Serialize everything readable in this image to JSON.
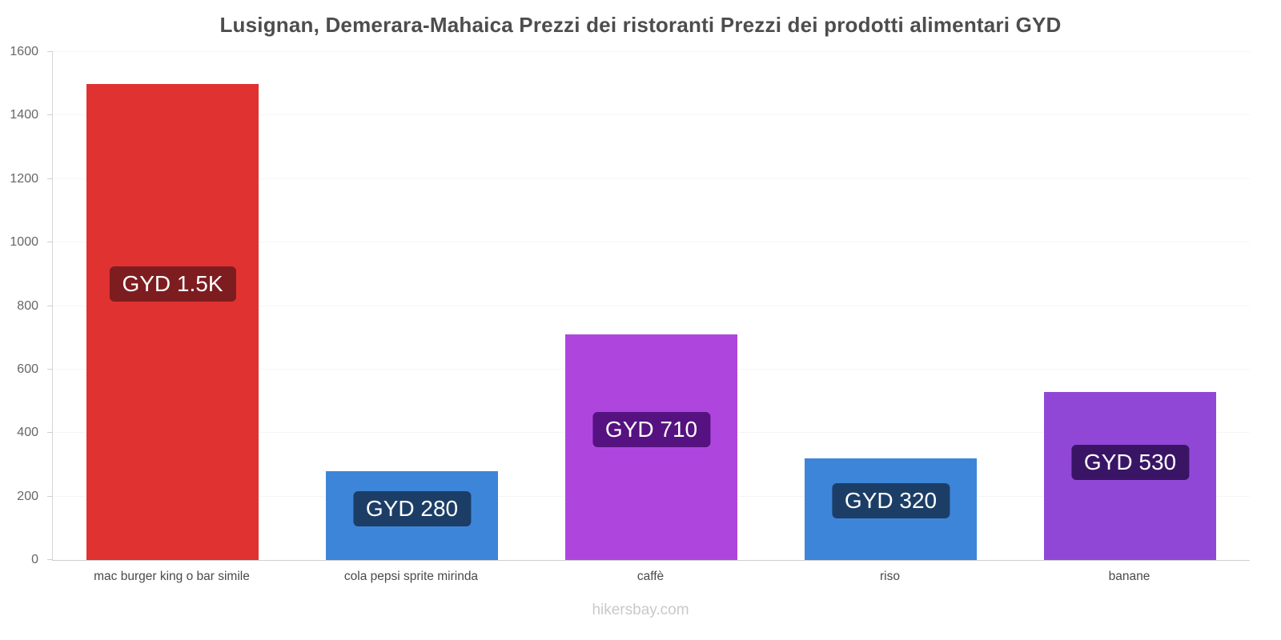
{
  "title": "Lusignan, Demerara-Mahaica Prezzi dei ristoranti Prezzi dei prodotti alimentari GYD",
  "footer": "hikersbay.com",
  "chart_data": {
    "type": "bar",
    "title": "Lusignan, Demerara-Mahaica Prezzi dei ristoranti Prezzi dei prodotti alimentari GYD",
    "categories": [
      "mac burger king o bar simile",
      "cola pepsi sprite mirinda",
      "caffè",
      "riso",
      "banane"
    ],
    "values": [
      1500,
      280,
      710,
      320,
      530
    ],
    "value_labels": [
      "GYD 1.5K",
      "GYD 280",
      "GYD 710",
      "GYD 320",
      "GYD 530"
    ],
    "bar_colors": [
      "#e03231",
      "#3d85d9",
      "#ae46de",
      "#3d85d9",
      "#9147d6"
    ],
    "label_bg_colors": [
      "#7d1d20",
      "#1c3e66",
      "#561280",
      "#1c3e66",
      "#3a1566"
    ],
    "currency": "GYD",
    "xlabel": "",
    "ylabel": "",
    "ylim": [
      0,
      1600
    ],
    "yticks": [
      0,
      200,
      400,
      600,
      800,
      1000,
      1200,
      1400,
      1600
    ],
    "grid": true,
    "legend": false
  }
}
